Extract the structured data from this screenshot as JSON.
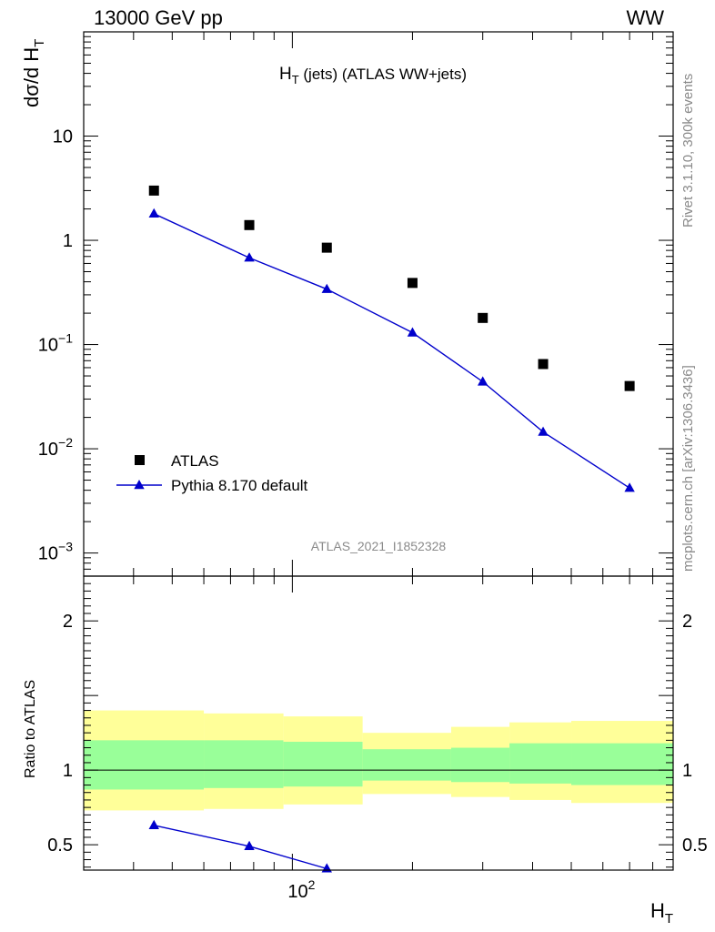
{
  "header": {
    "left": "13000 GeV pp",
    "right": "WW"
  },
  "side_labels": {
    "top": "Rivet 3.1.10,  300k events",
    "bottom": "mcplots.cern.ch [arXiv:1306.3436]"
  },
  "analysis_id": "ATLAS_2021_I1852328",
  "colors": {
    "data": "#000000",
    "mc": "#0000cc",
    "band_inner": "#99ff99",
    "band_outer": "#ffff99"
  },
  "chart_data": [
    {
      "type": "scatter",
      "panel": "main",
      "title": "H_T (jets) (ATLAS WW+jets)",
      "ylabel": "dσ/d H_T",
      "xlabel": "H_T",
      "xscale": "log",
      "yscale": "log",
      "xlim": [
        30,
        900
      ],
      "ylim": [
        0.0006,
        100
      ],
      "yticks": [
        "10^-3",
        "10^-2",
        "10^-1",
        "1",
        "10"
      ],
      "xticks": [
        "10^2"
      ],
      "legend_position": "bottom-left",
      "legend": [
        "ATLAS",
        "Pythia 8.170 default"
      ],
      "bins": [
        [
          30,
          60
        ],
        [
          60,
          95
        ],
        [
          95,
          150
        ],
        [
          150,
          250
        ],
        [
          250,
          350
        ],
        [
          350,
          500
        ],
        [
          500,
          900
        ]
      ],
      "x": [
        45,
        78,
        122,
        200,
        300,
        425,
        700
      ],
      "series": [
        {
          "name": "ATLAS",
          "marker": "square",
          "values": [
            3.0,
            1.4,
            0.85,
            0.39,
            0.18,
            0.065,
            0.04
          ]
        },
        {
          "name": "Pythia 8.170 default",
          "marker": "triangle",
          "values": [
            1.8,
            0.68,
            0.34,
            0.13,
            0.044,
            0.0145,
            0.0042
          ]
        }
      ]
    },
    {
      "type": "line",
      "panel": "ratio",
      "ylabel": "Ratio to ATLAS",
      "xlabel": "H_T",
      "xscale": "log",
      "ylim": [
        0.33,
        2.3
      ],
      "yticks": [
        "0.5",
        "1",
        "2"
      ],
      "bins": [
        [
          30,
          60
        ],
        [
          60,
          95
        ],
        [
          95,
          150
        ],
        [
          150,
          250
        ],
        [
          250,
          350
        ],
        [
          350,
          500
        ],
        [
          500,
          900
        ]
      ],
      "band_inner": [
        [
          0.87,
          1.2
        ],
        [
          0.88,
          1.2
        ],
        [
          0.89,
          1.19
        ],
        [
          0.93,
          1.14
        ],
        [
          0.92,
          1.15
        ],
        [
          0.91,
          1.18
        ],
        [
          0.9,
          1.18
        ]
      ],
      "band_outer": [
        [
          0.73,
          1.4
        ],
        [
          0.74,
          1.38
        ],
        [
          0.77,
          1.36
        ],
        [
          0.84,
          1.25
        ],
        [
          0.82,
          1.29
        ],
        [
          0.8,
          1.32
        ],
        [
          0.78,
          1.33
        ]
      ],
      "series": [
        {
          "name": "Pythia 8.170 default",
          "x": [
            45,
            78,
            122
          ],
          "values": [
            0.63,
            0.49,
            0.34
          ]
        }
      ]
    }
  ]
}
